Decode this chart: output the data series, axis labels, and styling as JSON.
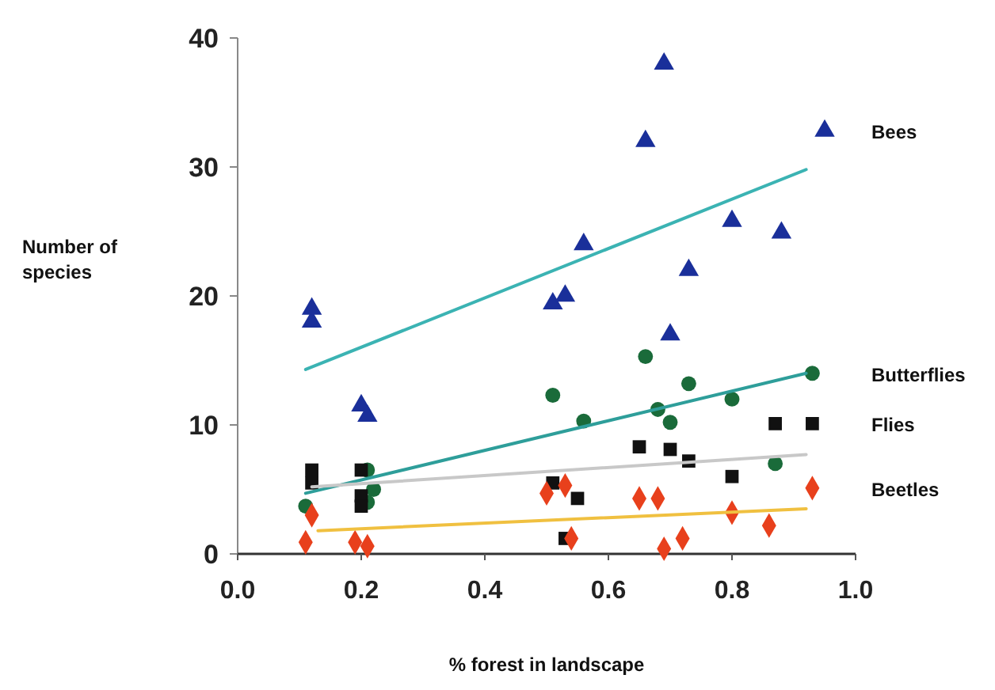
{
  "chart_data": {
    "type": "scatter",
    "xlabel": "% forest in landscape",
    "ylabel": "Number of species",
    "xlim": [
      0,
      1.0
    ],
    "ylim": [
      0,
      40
    ],
    "xticks": [
      {
        "value": 0,
        "label": "0.0"
      },
      {
        "value": 0.2,
        "label": "0.2"
      },
      {
        "value": 0.4,
        "label": "0.4"
      },
      {
        "value": 0.6,
        "label": "0.6"
      },
      {
        "value": 0.8,
        "label": "0.8"
      },
      {
        "value": 1.0,
        "label": "1.0"
      }
    ],
    "yticks": [
      0,
      10,
      20,
      30,
      40
    ],
    "grid": false,
    "series": [
      {
        "name": "Bees",
        "color": "#1a2f9a",
        "marker": "triangle",
        "x": [
          0.12,
          0.12,
          0.2,
          0.21,
          0.51,
          0.53,
          0.56,
          0.69,
          0.66,
          0.8,
          0.88,
          0.73,
          0.7,
          0.95
        ],
        "values": [
          18,
          19,
          11.5,
          10.7,
          19.4,
          20,
          24,
          38,
          32,
          25.8,
          24.9,
          22,
          17,
          32.8
        ]
      },
      {
        "name": "Butterflies",
        "color": "#1a6b3a",
        "marker": "circle",
        "x": [
          0.11,
          0.21,
          0.22,
          0.21,
          0.51,
          0.56,
          0.66,
          0.68,
          0.7,
          0.73,
          0.8,
          0.87,
          0.93
        ],
        "values": [
          3.7,
          6.5,
          5,
          4,
          12.3,
          10.3,
          15.3,
          11.2,
          10.2,
          13.2,
          12,
          7,
          14
        ]
      },
      {
        "name": "Flies",
        "color": "#111111",
        "marker": "square",
        "x": [
          0.12,
          0.12,
          0.2,
          0.2,
          0.2,
          0.53,
          0.51,
          0.55,
          0.65,
          0.7,
          0.73,
          0.8,
          0.87,
          0.93
        ],
        "values": [
          6.5,
          5.5,
          6.5,
          4.5,
          3.7,
          1.2,
          5.5,
          4.3,
          8.3,
          8.1,
          7.2,
          6,
          10.1,
          10.1
        ]
      },
      {
        "name": "Beetles",
        "color": "#e8401c",
        "marker": "diamond",
        "x": [
          0.11,
          0.12,
          0.19,
          0.21,
          0.5,
          0.53,
          0.54,
          0.65,
          0.68,
          0.69,
          0.72,
          0.8,
          0.86,
          0.93
        ],
        "values": [
          0.9,
          3,
          0.9,
          0.6,
          4.7,
          5.3,
          1.2,
          4.3,
          4.3,
          0.4,
          1.2,
          3.2,
          2.2,
          5.1
        ]
      },
      {
        "type": "line",
        "color": "#3bb3b3",
        "marker": "none",
        "x": [
          0.11,
          0.92
        ],
        "values": [
          14.3,
          29.8
        ]
      },
      {
        "type": "line",
        "color": "#2e9e9a",
        "marker": "none",
        "x": [
          0.11,
          0.92
        ],
        "values": [
          4.7,
          14
        ]
      },
      {
        "type": "line",
        "color": "#c8c8c8",
        "marker": "none",
        "x": [
          0.12,
          0.92
        ],
        "values": [
          5.2,
          7.7
        ]
      },
      {
        "type": "line",
        "color": "#f0c040",
        "marker": "none",
        "x": [
          0.13,
          0.92
        ],
        "values": [
          1.8,
          3.5
        ]
      }
    ]
  }
}
